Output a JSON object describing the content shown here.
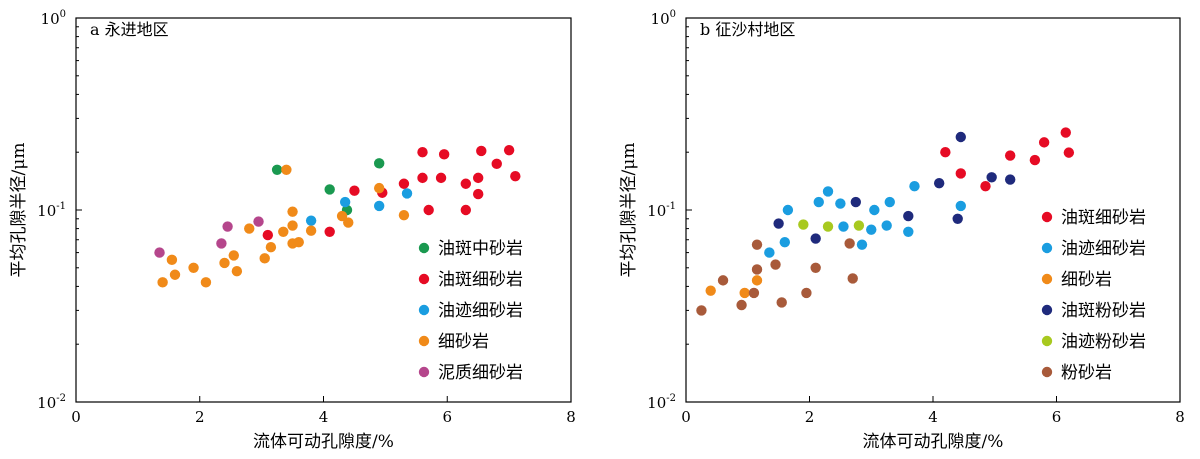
{
  "chart_data": [
    {
      "type": "scatter",
      "title": "a 永进地区",
      "xlabel": "流体可动孔隙度/%",
      "ylabel": "平均孔隙半径/μm",
      "xlim": [
        0,
        8
      ],
      "ylim": [
        0.01,
        1
      ],
      "yscale": "log",
      "xticks": [
        0,
        2,
        4,
        6,
        8
      ],
      "yticks": [
        "10^-2",
        "10^-1",
        "10^0"
      ],
      "legend_position": "bottom-right",
      "series": [
        {
          "name": "油斑中砂岩",
          "color": "#1a9950",
          "points": [
            [
              3.25,
              0.162
            ],
            [
              4.1,
              0.128
            ],
            [
              4.38,
              0.1
            ],
            [
              4.9,
              0.175
            ]
          ]
        },
        {
          "name": "油斑细砂岩",
          "color": "#e60b24",
          "points": [
            [
              3.1,
              0.074
            ],
            [
              4.1,
              0.077
            ],
            [
              4.5,
              0.126
            ],
            [
              4.95,
              0.123
            ],
            [
              5.3,
              0.137
            ],
            [
              5.6,
              0.2
            ],
            [
              5.6,
              0.147
            ],
            [
              5.7,
              0.1
            ],
            [
              5.9,
              0.147
            ],
            [
              5.95,
              0.195
            ],
            [
              6.3,
              0.137
            ],
            [
              6.3,
              0.1
            ],
            [
              6.5,
              0.147
            ],
            [
              6.5,
              0.121
            ],
            [
              6.55,
              0.203
            ],
            [
              6.8,
              0.174
            ],
            [
              7.0,
              0.205
            ],
            [
              7.1,
              0.15
            ]
          ]
        },
        {
          "name": "油迹细砂岩",
          "color": "#1a9de0",
          "points": [
            [
              3.8,
              0.088
            ],
            [
              4.35,
              0.11
            ],
            [
              4.9,
              0.105
            ],
            [
              5.35,
              0.122
            ]
          ]
        },
        {
          "name": "细砂岩",
          "color": "#f08a19",
          "points": [
            [
              1.4,
              0.042
            ],
            [
              1.55,
              0.055
            ],
            [
              1.6,
              0.046
            ],
            [
              1.9,
              0.05
            ],
            [
              2.1,
              0.042
            ],
            [
              2.4,
              0.053
            ],
            [
              2.55,
              0.058
            ],
            [
              2.6,
              0.048
            ],
            [
              2.8,
              0.08
            ],
            [
              3.05,
              0.056
            ],
            [
              3.15,
              0.064
            ],
            [
              3.35,
              0.077
            ],
            [
              3.4,
              0.162
            ],
            [
              3.5,
              0.098
            ],
            [
              3.5,
              0.083
            ],
            [
              3.5,
              0.067
            ],
            [
              3.6,
              0.068
            ],
            [
              3.8,
              0.078
            ],
            [
              4.3,
              0.093
            ],
            [
              4.4,
              0.086
            ],
            [
              4.9,
              0.13
            ],
            [
              5.3,
              0.094
            ]
          ]
        },
        {
          "name": "泥质细砂岩",
          "color": "#b5468c",
          "points": [
            [
              1.35,
              0.06
            ],
            [
              2.35,
              0.067
            ],
            [
              2.45,
              0.082
            ],
            [
              2.95,
              0.087
            ]
          ]
        }
      ]
    },
    {
      "type": "scatter",
      "title": "b 征沙村地区",
      "xlabel": "流体可动孔隙度/%",
      "ylabel": "平均孔隙半径/μm",
      "xlim": [
        0,
        8
      ],
      "ylim": [
        0.01,
        1
      ],
      "yscale": "log",
      "xticks": [
        0,
        2,
        4,
        6,
        8
      ],
      "yticks": [
        "10^-2",
        "10^-1",
        "10^0"
      ],
      "legend_position": "bottom-right",
      "series": [
        {
          "name": "油斑细砂岩",
          "color": "#e60b24",
          "points": [
            [
              4.2,
              0.2
            ],
            [
              4.45,
              0.155
            ],
            [
              4.85,
              0.133
            ],
            [
              5.25,
              0.192
            ],
            [
              5.65,
              0.182
            ],
            [
              5.8,
              0.225
            ],
            [
              6.15,
              0.253
            ],
            [
              6.2,
              0.199
            ]
          ]
        },
        {
          "name": "油迹细砂岩",
          "color": "#1a9de0",
          "points": [
            [
              1.35,
              0.06
            ],
            [
              1.6,
              0.068
            ],
            [
              1.65,
              0.1
            ],
            [
              2.15,
              0.11
            ],
            [
              2.3,
              0.125
            ],
            [
              2.5,
              0.108
            ],
            [
              2.55,
              0.082
            ],
            [
              2.85,
              0.066
            ],
            [
              3.0,
              0.079
            ],
            [
              3.05,
              0.1
            ],
            [
              3.25,
              0.083
            ],
            [
              3.3,
              0.11
            ],
            [
              3.6,
              0.077
            ],
            [
              3.7,
              0.133
            ],
            [
              4.45,
              0.105
            ]
          ]
        },
        {
          "name": "细砂岩",
          "color": "#f08a19",
          "points": [
            [
              0.4,
              0.038
            ],
            [
              0.95,
              0.037
            ],
            [
              1.15,
              0.043
            ]
          ]
        },
        {
          "name": "油斑粉砂岩",
          "color": "#1f2a7c",
          "points": [
            [
              1.5,
              0.085
            ],
            [
              2.1,
              0.071
            ],
            [
              2.75,
              0.11
            ],
            [
              3.6,
              0.093
            ],
            [
              4.1,
              0.138
            ],
            [
              4.4,
              0.09
            ],
            [
              4.45,
              0.24
            ],
            [
              4.95,
              0.148
            ],
            [
              5.25,
              0.144
            ]
          ]
        },
        {
          "name": "油迹粉砂岩",
          "color": "#a8c91f",
          "points": [
            [
              1.9,
              0.084
            ],
            [
              2.3,
              0.082
            ],
            [
              2.8,
              0.083
            ]
          ]
        },
        {
          "name": "粉砂岩",
          "color": "#a85a3a",
          "points": [
            [
              0.25,
              0.03
            ],
            [
              0.6,
              0.043
            ],
            [
              0.9,
              0.032
            ],
            [
              1.1,
              0.037
            ],
            [
              1.15,
              0.049
            ],
            [
              1.15,
              0.066
            ],
            [
              1.45,
              0.052
            ],
            [
              1.55,
              0.033
            ],
            [
              1.95,
              0.037
            ],
            [
              2.1,
              0.05
            ],
            [
              2.65,
              0.067
            ],
            [
              2.7,
              0.044
            ]
          ]
        }
      ]
    }
  ]
}
